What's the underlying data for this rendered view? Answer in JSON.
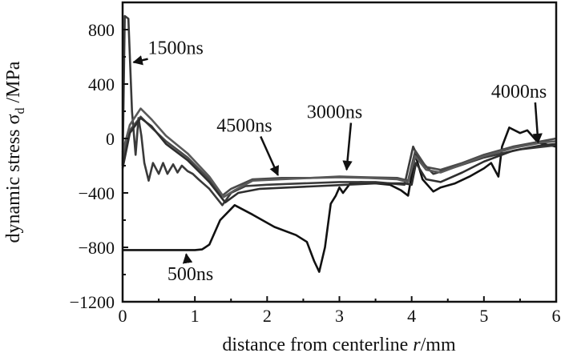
{
  "chart_data": {
    "type": "line",
    "xlabel": {
      "main": "distance from centerline ",
      "var": "r",
      "unit": "/mm"
    },
    "ylabel": {
      "main": "dynamic stress σ",
      "sub": "d",
      "unit": " /MPa"
    },
    "xlim": [
      0,
      6
    ],
    "ylim": [
      -1200,
      1000
    ],
    "xticks": [
      0,
      1,
      2,
      3,
      4,
      5,
      6
    ],
    "yticks": [
      800,
      400,
      0,
      -400,
      -800,
      -1200
    ],
    "ytick_labels": [
      "800",
      "400",
      "0",
      "−400",
      "−800",
      "−1200"
    ],
    "grid": false,
    "series": [
      {
        "name": "500ns",
        "color": "#111111",
        "x": [
          0,
          0.5,
          1.0,
          1.1,
          1.2,
          1.35,
          1.55,
          1.8,
          2.1,
          2.4,
          2.55,
          2.65,
          2.72,
          2.8,
          2.88,
          2.95,
          3.0,
          3.05,
          3.15,
          3.3,
          3.5,
          3.7,
          3.85,
          3.95,
          4.05,
          4.15,
          4.3,
          4.4,
          4.6,
          4.8,
          5.0,
          5.1,
          5.2,
          5.25,
          5.35,
          5.5,
          5.6,
          5.75,
          6.0
        ],
        "y": [
          -820,
          -820,
          -820,
          -815,
          -780,
          -600,
          -490,
          -560,
          -650,
          -710,
          -760,
          -900,
          -980,
          -800,
          -480,
          -420,
          -360,
          -400,
          -330,
          -320,
          -330,
          -340,
          -380,
          -420,
          -120,
          -300,
          -390,
          -360,
          -330,
          -280,
          -220,
          -180,
          -280,
          -60,
          80,
          40,
          60,
          -30,
          -60
        ]
      },
      {
        "name": "1500ns",
        "color": "#3a3a3a",
        "x": [
          0,
          0.03,
          0.08,
          0.13,
          0.18,
          0.22,
          0.26,
          0.3,
          0.36,
          0.42,
          0.5,
          0.56,
          0.62,
          0.7,
          0.76,
          0.82,
          0.9,
          0.97,
          1.05,
          1.2,
          1.38,
          1.5,
          1.7,
          2.0,
          2.5,
          3.0,
          3.5,
          3.9,
          4.02,
          4.1,
          4.3,
          4.6,
          5.0,
          5.5,
          6.0
        ],
        "y": [
          -200,
          900,
          880,
          200,
          -120,
          150,
          20,
          -180,
          -310,
          -180,
          -260,
          -180,
          -260,
          -190,
          -250,
          -200,
          -240,
          -260,
          -300,
          -370,
          -490,
          -400,
          -350,
          -340,
          -330,
          -320,
          -320,
          -340,
          -60,
          -150,
          -260,
          -210,
          -140,
          -80,
          -50
        ]
      },
      {
        "name": "4500ns",
        "color": "#4a4a4a",
        "x": [
          0,
          0.1,
          0.25,
          0.4,
          0.6,
          0.9,
          1.2,
          1.38,
          1.5,
          1.8,
          2.2,
          2.6,
          3.0,
          3.4,
          3.8,
          3.95,
          4.05,
          4.2,
          4.4,
          4.7,
          5.0,
          5.4,
          5.8,
          6.0
        ],
        "y": [
          -150,
          60,
          160,
          80,
          -20,
          -140,
          -300,
          -420,
          -370,
          -300,
          -290,
          -290,
          -280,
          -285,
          -290,
          -310,
          -90,
          -210,
          -230,
          -180,
          -120,
          -60,
          -20,
          0
        ]
      },
      {
        "name": "3000ns",
        "color": "#5a5a5a",
        "x": [
          0,
          0.1,
          0.25,
          0.4,
          0.6,
          0.9,
          1.2,
          1.4,
          1.55,
          1.8,
          2.2,
          2.6,
          3.0,
          3.4,
          3.8,
          3.95,
          4.05,
          4.2,
          4.4,
          4.7,
          5.0,
          5.4,
          5.8,
          6.0
        ],
        "y": [
          -100,
          100,
          220,
          140,
          20,
          -110,
          -280,
          -430,
          -380,
          -310,
          -300,
          -290,
          -285,
          -290,
          -300,
          -320,
          -130,
          -230,
          -250,
          -190,
          -130,
          -70,
          -30,
          -20
        ]
      },
      {
        "name": "4000ns",
        "color": "#2e2e2e",
        "x": [
          0,
          0.1,
          0.25,
          0.4,
          0.6,
          0.9,
          1.2,
          1.42,
          1.6,
          1.9,
          2.3,
          2.7,
          3.1,
          3.5,
          3.9,
          4.0,
          4.06,
          4.2,
          4.4,
          4.7,
          5.0,
          5.4,
          5.8,
          6.0
        ],
        "y": [
          -220,
          40,
          150,
          90,
          -40,
          -160,
          -320,
          -470,
          -400,
          -370,
          -360,
          -350,
          -340,
          -330,
          -330,
          -340,
          -180,
          -300,
          -320,
          -250,
          -170,
          -90,
          -50,
          -40
        ]
      }
    ],
    "annotations": [
      {
        "text": "1500ns",
        "x": 0.35,
        "y": 620,
        "arrow_to": [
          0.15,
          560
        ]
      },
      {
        "text": "4500ns",
        "x": 1.3,
        "y": 50,
        "arrow_to": [
          2.15,
          -270
        ]
      },
      {
        "text": "3000ns",
        "x": 2.55,
        "y": 150,
        "arrow_to": [
          3.1,
          -230
        ]
      },
      {
        "text": "4000ns",
        "x": 5.1,
        "y": 300,
        "arrow_to": [
          5.75,
          -30
        ]
      },
      {
        "text": "500ns",
        "x": 0.62,
        "y": -1040,
        "arrow_to": [
          0.88,
          -850
        ]
      }
    ]
  }
}
